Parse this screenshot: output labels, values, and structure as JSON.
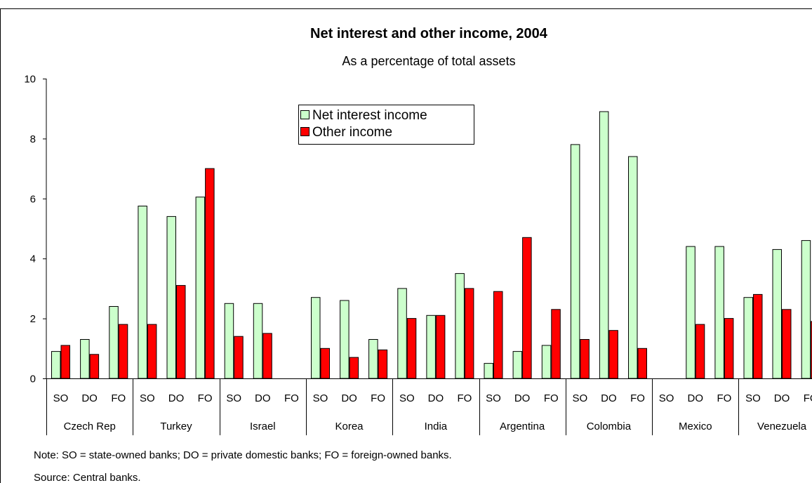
{
  "chart_data": {
    "type": "bar",
    "title": "Net interest and other income, 2004",
    "subtitle": "As a percentage of total assets",
    "ylim": [
      0,
      10
    ],
    "yticks": [
      0,
      2,
      4,
      6,
      8,
      10
    ],
    "grid": false,
    "legend_position": "top-center",
    "countries": [
      "Czech Rep",
      "Turkey",
      "Israel",
      "Korea",
      "India",
      "Argentina",
      "Colombia",
      "Mexico",
      "Venezuela"
    ],
    "bank_types": [
      "SO",
      "DO",
      "FO"
    ],
    "categories": [
      "SO",
      "DO",
      "FO",
      "SO",
      "DO",
      "FO",
      "SO",
      "DO",
      "FO",
      "SO",
      "DO",
      "FO",
      "SO",
      "DO",
      "FO",
      "SO",
      "DO",
      "FO",
      "SO",
      "DO",
      "FO",
      "SO",
      "DO",
      "FO",
      "SO",
      "DO",
      "FO"
    ],
    "series": [
      {
        "name": "Net interest income",
        "color": "#ccffcc",
        "values": [
          0.9,
          1.3,
          2.4,
          5.75,
          5.4,
          6.05,
          2.5,
          2.5,
          null,
          2.7,
          2.6,
          1.3,
          3.0,
          2.1,
          3.5,
          0.5,
          0.9,
          1.1,
          7.8,
          8.9,
          7.4,
          null,
          4.4,
          4.4,
          2.7,
          4.3,
          4.6
        ]
      },
      {
        "name": "Other income",
        "color": "#ff0000",
        "values": [
          1.1,
          0.8,
          1.8,
          1.8,
          3.1,
          7.0,
          1.4,
          1.5,
          null,
          1.0,
          0.7,
          0.95,
          2.0,
          2.1,
          3.0,
          2.9,
          4.7,
          2.3,
          1.3,
          1.6,
          1.0,
          null,
          1.8,
          2.0,
          2.8,
          2.3,
          1.9
        ]
      }
    ]
  },
  "notes": {
    "note": "Note: SO = state-owned banks; DO = private domestic banks; FO = foreign-owned banks.",
    "source": "Source: Central banks."
  }
}
